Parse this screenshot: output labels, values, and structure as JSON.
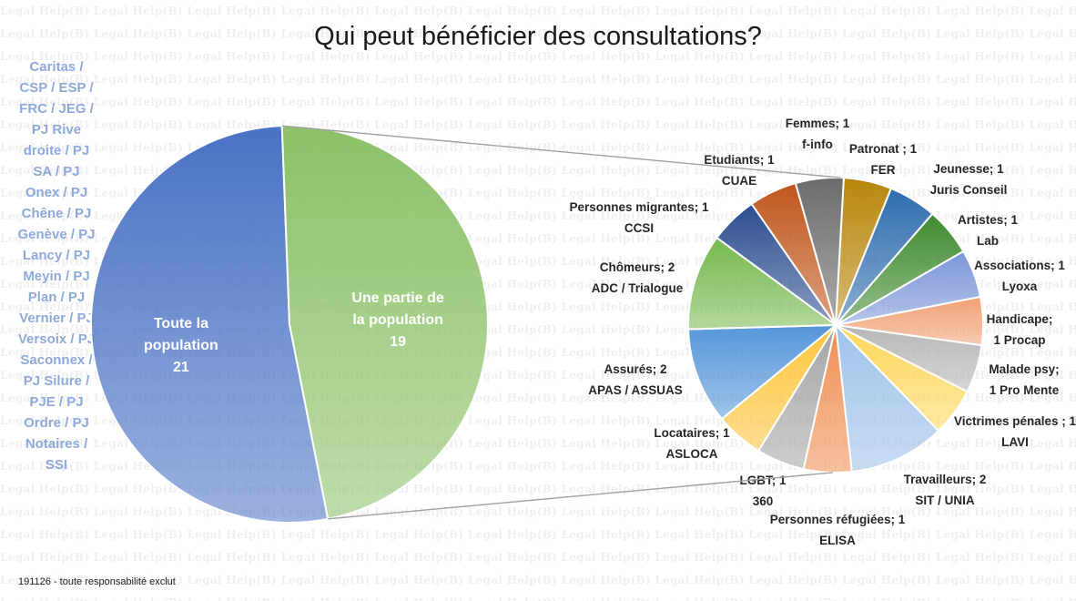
{
  "watermark_text": "Legal Help",
  "footnote": "191126  - toute responsabilité exclut",
  "chart_data": {
    "type": "pie",
    "subtype": "pie-of-pie",
    "title": "Qui peut bénéficier des consultations?",
    "annotation": "Caritas / CSP / ESP / FRC / JEG / PJ Rive droite / PJ SA / PJ Onex / PJ Chêne / PJ Genève / PJ Lancy / PJ Meyin / PJ Plan / PJ Vernier / PJ Versoix / PJ Saconnex / PJ Silure / PJE / PJ Ordre / PJ Notaires / SSI",
    "main": [
      {
        "label": "Toute la population",
        "value": 21,
        "color": "#4a72c4"
      },
      {
        "label": "Une partie de la population",
        "value": 19,
        "color": "#8cc168"
      }
    ],
    "secondary": [
      {
        "label": "Patronat ; 1",
        "org": "FER",
        "value": 1,
        "color": "#b8860b"
      },
      {
        "label": "Jeunesse; 1",
        "org": "Juris Conseil",
        "value": 1,
        "color": "#2e6dae"
      },
      {
        "label": "Artistes; 1",
        "org": "Lab",
        "value": 1,
        "color": "#3f8a2f"
      },
      {
        "label": "Associations; 1",
        "org": "Lyoxa",
        "value": 1,
        "color": "#7b96d8"
      },
      {
        "label": "Handicape;",
        "org": "1 Procap",
        "value": 1,
        "color": "#f0a074"
      },
      {
        "label": "Malade psy;",
        "org": "1 Pro Mente",
        "value": 1,
        "color": "#b6b6b6"
      },
      {
        "label": "Victrimes pénales ; 1",
        "org": "LAVI",
        "value": 1,
        "color": "#ffd75a"
      },
      {
        "label": "Travailleurs; 2",
        "org": "SIT / UNIA",
        "value": 2,
        "color": "#9fc2ea"
      },
      {
        "label": "Personnes réfugiées; 1",
        "org": "ELISA",
        "value": 1,
        "color": "#f08e52"
      },
      {
        "label": "LGBT; 1",
        "org": "360",
        "value": 1,
        "color": "#a5a5a5"
      },
      {
        "label": "Locataires; 1",
        "org": "ASLOCA",
        "value": 1,
        "color": "#fdc53a"
      },
      {
        "label": "Assurés; 2",
        "org": "APAS / ASSUAS",
        "value": 2,
        "color": "#5596d9"
      },
      {
        "label": "Chômeurs; 2",
        "org": "ADC / Trialogue",
        "value": 2,
        "color": "#75b84d"
      },
      {
        "label": "Personnes migrantes; 1",
        "org": "CCSI",
        "value": 1,
        "color": "#2c4e8f"
      },
      {
        "label": "Etudiants; 1",
        "org": "CUAE",
        "value": 1,
        "color": "#c0561c"
      },
      {
        "label": "Femmes; 1",
        "org": "f-info",
        "value": 1,
        "color": "#6b6b6b"
      }
    ]
  }
}
